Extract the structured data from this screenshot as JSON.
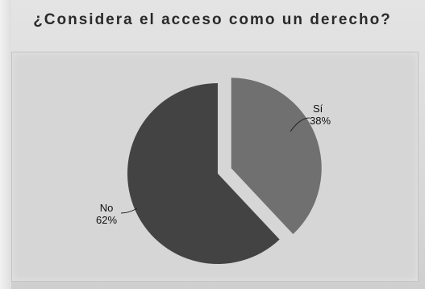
{
  "title": "¿Considera el acceso como un derecho?",
  "chart_data": {
    "type": "pie",
    "categories": [
      "Sí",
      "No"
    ],
    "values": [
      38,
      62
    ],
    "value_labels": [
      "38%",
      "62%"
    ],
    "colors": [
      "#707070",
      "#434343"
    ],
    "exploded": [
      "Sí"
    ],
    "legend": "none"
  }
}
